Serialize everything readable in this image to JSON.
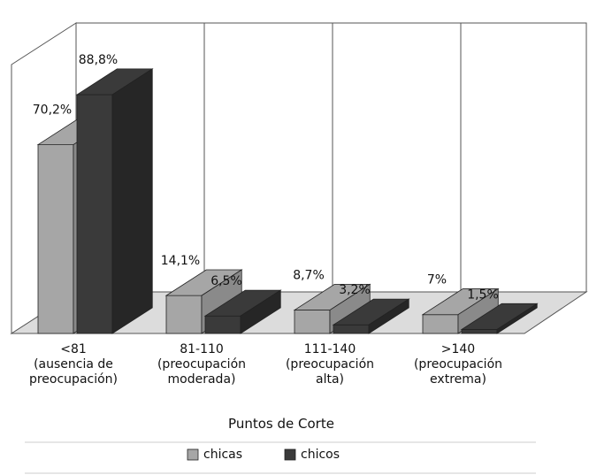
{
  "chart_data": {
    "type": "bar",
    "xlabel": "Puntos de Corte",
    "categories": [
      [
        "<81",
        "(ausencia de",
        "preocupación)"
      ],
      [
        "81-110",
        "(preocupación",
        "moderada)"
      ],
      [
        "111-140",
        "(preocupación",
        "alta)"
      ],
      [
        ">140",
        "(preocupación",
        "extrema)"
      ]
    ],
    "series": [
      {
        "name": "chicas",
        "values": [
          70.2,
          14.1,
          8.7,
          7
        ],
        "labels": [
          "70,2%",
          "14,1%",
          "8,7%",
          "7%"
        ],
        "color": "#a6a6a6"
      },
      {
        "name": "chicos",
        "values": [
          88.8,
          6.5,
          3.2,
          1.5
        ],
        "labels": [
          "88,8%",
          "6,5%",
          "3,2%",
          "1,5%"
        ],
        "color": "#3a3a3a"
      }
    ],
    "ylim": [
      0,
      100
    ],
    "grid": true,
    "legend": "bottom",
    "three_d": true
  }
}
